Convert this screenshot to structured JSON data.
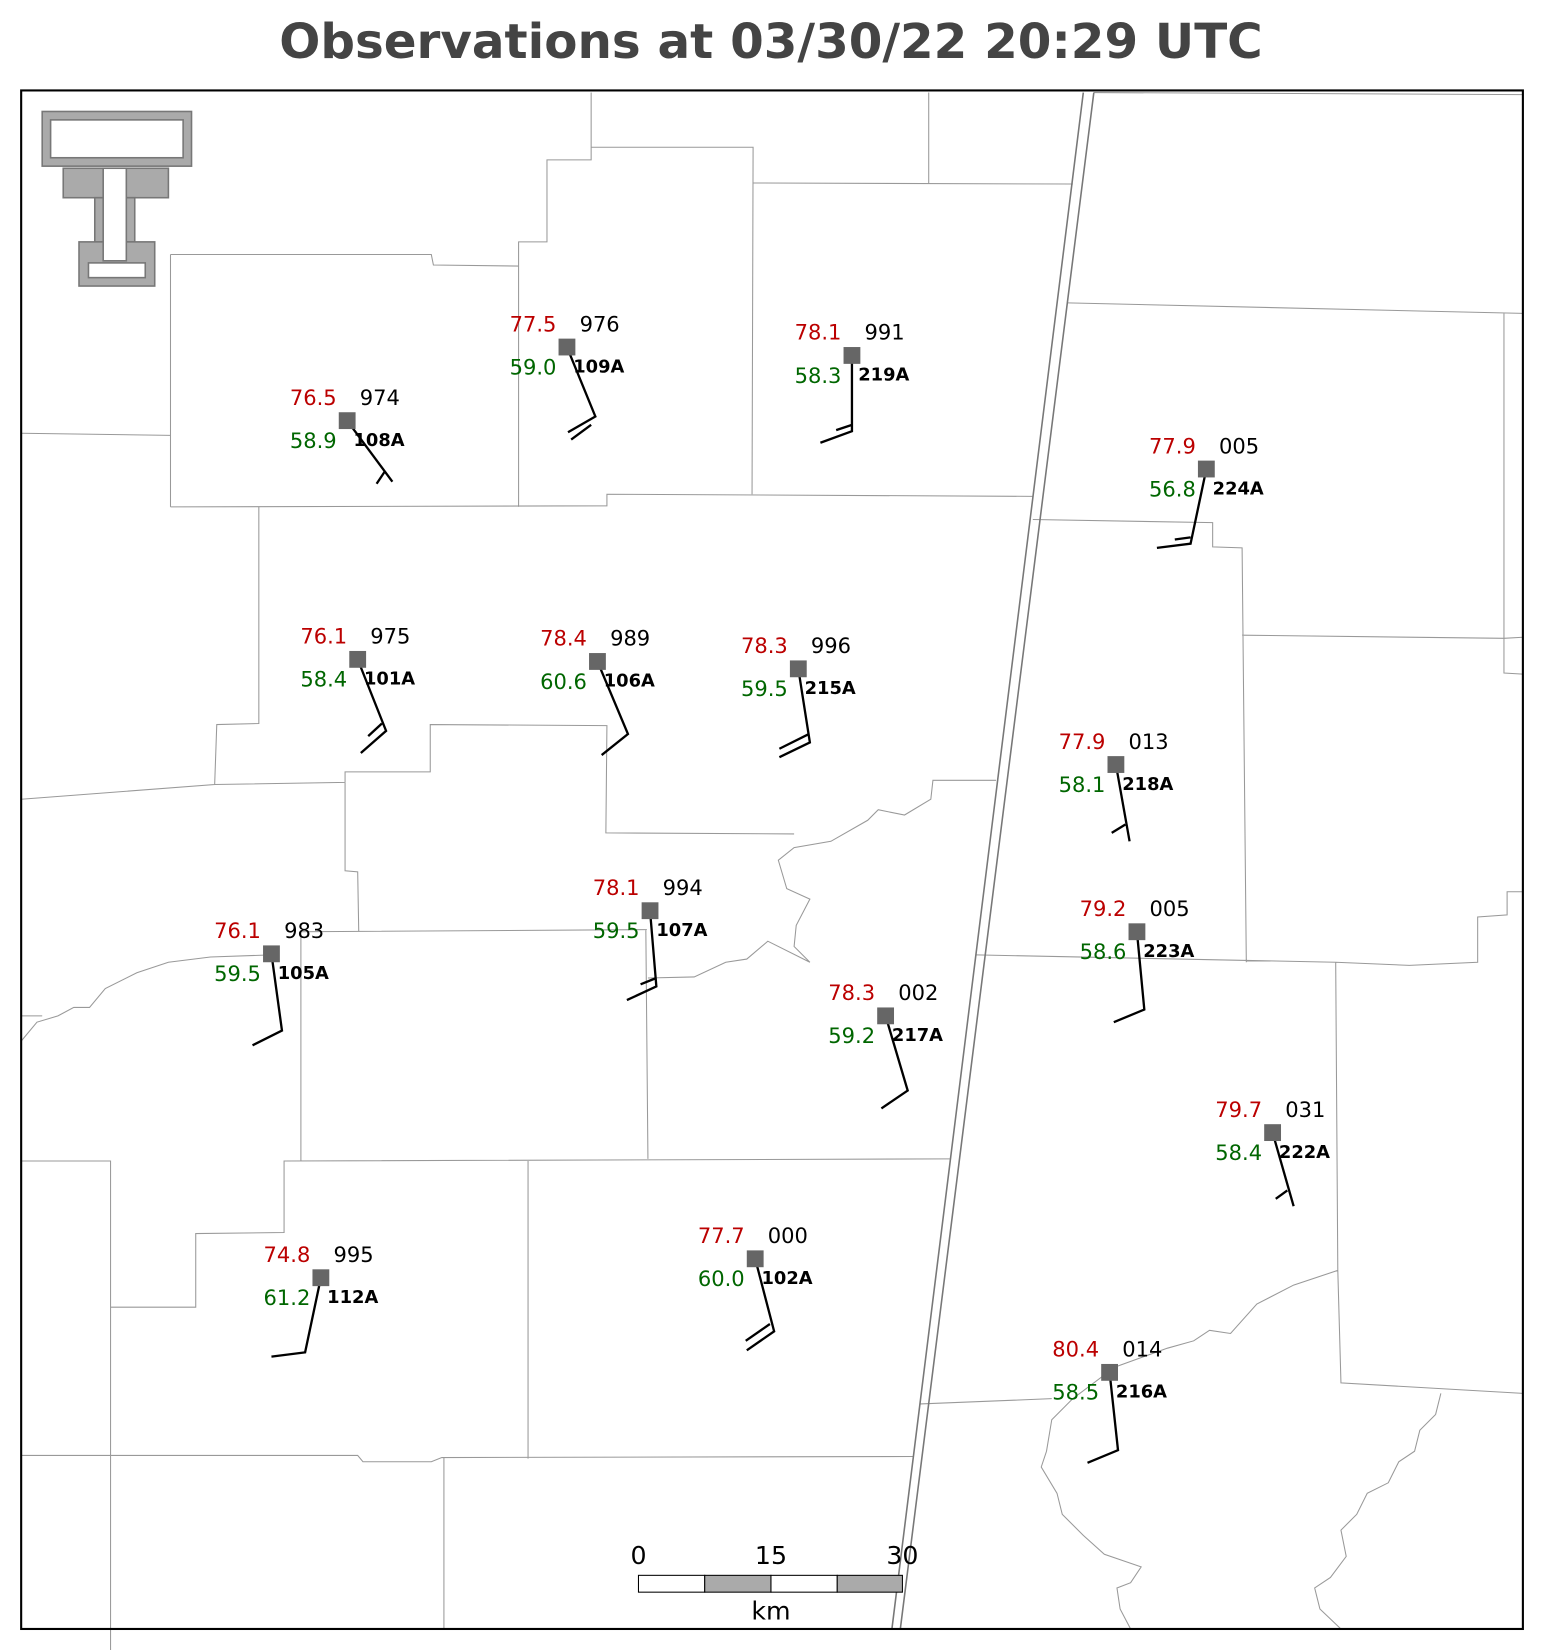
{
  "title": "Observations at 03/30/22 20:29 UTC",
  "stations": [
    {
      "id": "108A",
      "temperature": "76.5",
      "pressure": "974",
      "dewpoint": "58.9"
    },
    {
      "id": "109A",
      "temperature": "77.5",
      "pressure": "976",
      "dewpoint": "59.0"
    },
    {
      "id": "219A",
      "temperature": "78.1",
      "pressure": "991",
      "dewpoint": "58.3"
    },
    {
      "id": "224A",
      "temperature": "77.9",
      "pressure": "005",
      "dewpoint": "56.8"
    },
    {
      "id": "101A",
      "temperature": "76.1",
      "pressure": "975",
      "dewpoint": "58.4"
    },
    {
      "id": "106A",
      "temperature": "78.4",
      "pressure": "989",
      "dewpoint": "60.6"
    },
    {
      "id": "215A",
      "temperature": "78.3",
      "pressure": "996",
      "dewpoint": "59.5"
    },
    {
      "id": "218A",
      "temperature": "77.9",
      "pressure": "013",
      "dewpoint": "58.1"
    },
    {
      "id": "107A",
      "temperature": "78.1",
      "pressure": "994",
      "dewpoint": "59.5"
    },
    {
      "id": "223A",
      "temperature": "79.2",
      "pressure": "005",
      "dewpoint": "58.6"
    },
    {
      "id": "105A",
      "temperature": "76.1",
      "pressure": "983",
      "dewpoint": "59.5"
    },
    {
      "id": "217A",
      "temperature": "78.3",
      "pressure": "002",
      "dewpoint": "59.2"
    },
    {
      "id": "222A",
      "temperature": "79.7",
      "pressure": "031",
      "dewpoint": "58.4"
    },
    {
      "id": "112A",
      "temperature": "74.8",
      "pressure": "995",
      "dewpoint": "61.2"
    },
    {
      "id": "102A",
      "temperature": "77.7",
      "pressure": "000",
      "dewpoint": "60.0"
    },
    {
      "id": "216A",
      "temperature": "80.4",
      "pressure": "014",
      "dewpoint": "58.5"
    }
  ],
  "scale_bar": {
    "labels": [
      "0",
      "15",
      "30"
    ],
    "unit": "km"
  }
}
